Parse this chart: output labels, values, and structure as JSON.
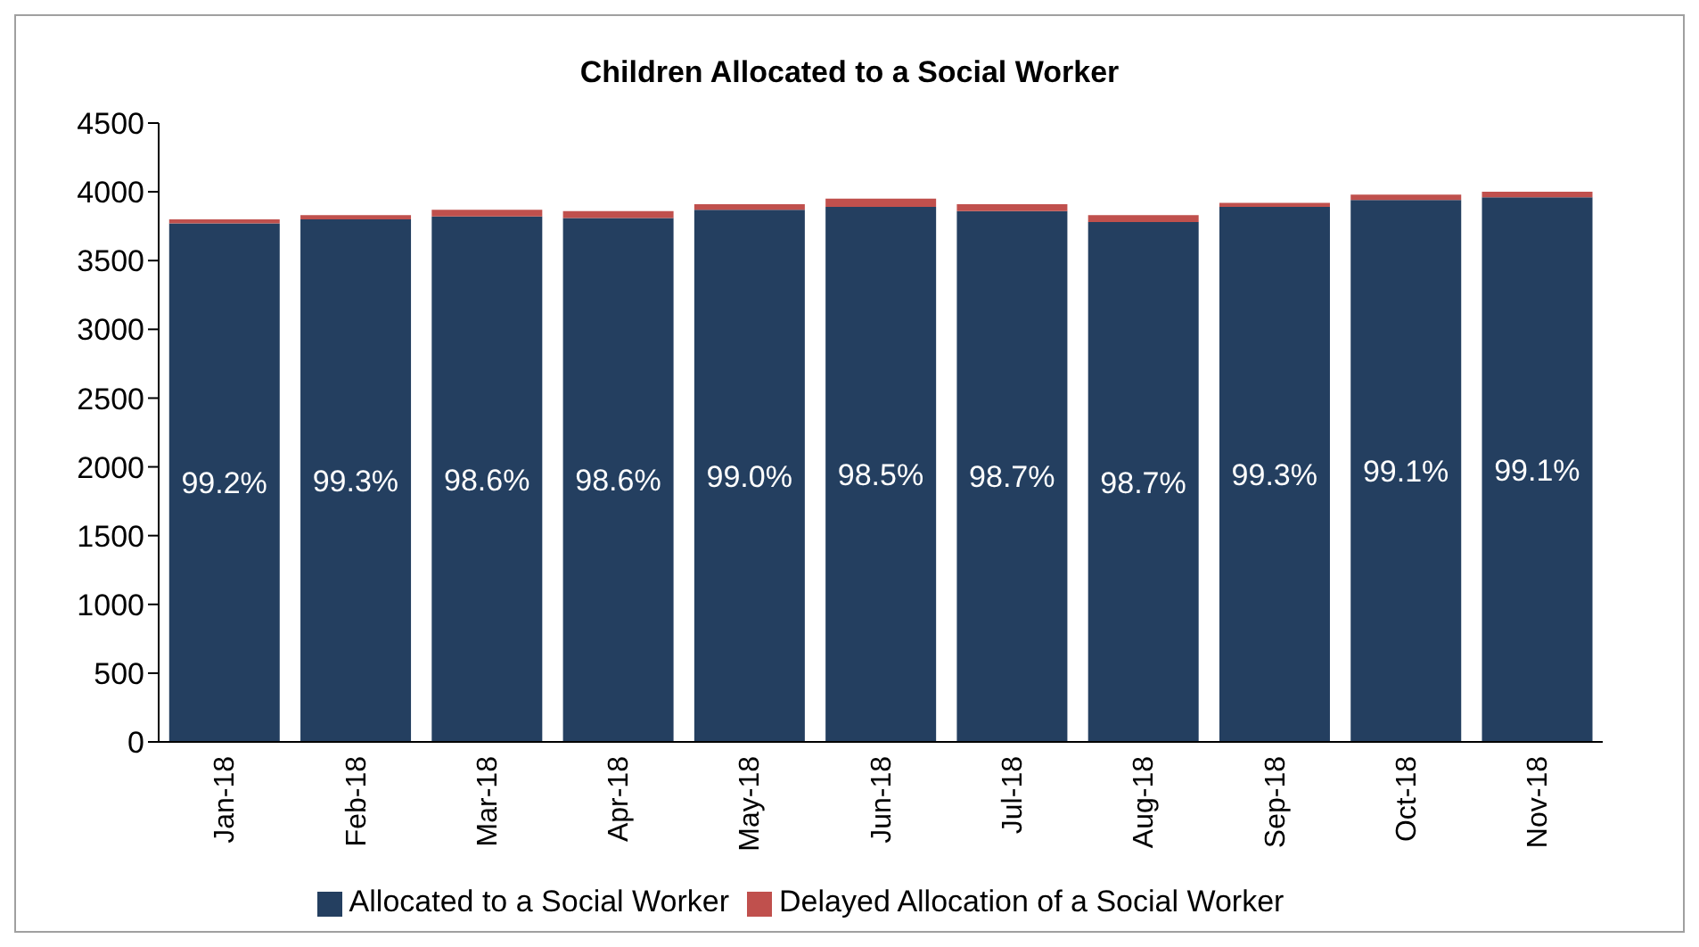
{
  "chart_data": {
    "type": "bar",
    "title": "Children Allocated to a Social Worker",
    "stacked": true,
    "categories": [
      "Jan-18",
      "Feb-18",
      "Mar-18",
      "Apr-18",
      "May-18",
      "Jun-18",
      "Jul-18",
      "Aug-18",
      "Sep-18",
      "Oct-18",
      "Nov-18"
    ],
    "series": [
      {
        "name": "Allocated to a Social Worker",
        "color": "#243f60",
        "values": [
          3770,
          3800,
          3820,
          3810,
          3870,
          3890,
          3860,
          3780,
          3890,
          3940,
          3960
        ]
      },
      {
        "name": "Delayed Allocation of a Social Worker",
        "color": "#c0504d",
        "values": [
          30,
          30,
          50,
          50,
          40,
          60,
          50,
          50,
          30,
          40,
          40
        ]
      }
    ],
    "annotations": [
      "99.2%",
      "99.3%",
      "98.6%",
      "98.6%",
      "99.0%",
      "98.5%",
      "98.7%",
      "98.7%",
      "99.3%",
      "99.1%",
      "99.1%"
    ],
    "ylim": [
      0,
      4500
    ],
    "yticks": [
      0,
      500,
      1000,
      1500,
      2000,
      2500,
      3000,
      3500,
      4000,
      4500
    ],
    "legend": "bottom"
  }
}
